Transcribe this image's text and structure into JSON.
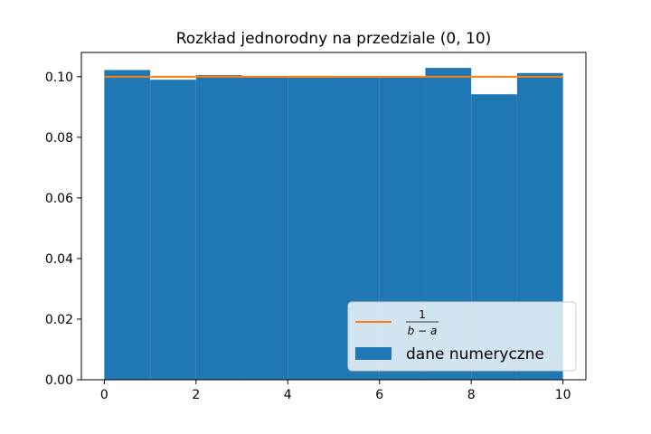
{
  "chart_data": {
    "type": "bar",
    "title": "Rozkład jednorodny na przedziale (0, 10)",
    "xlabel": "",
    "ylabel": "",
    "xlim": [
      -0.5,
      10.5
    ],
    "ylim": [
      0,
      0.108
    ],
    "x_ticks": [
      0,
      2,
      4,
      6,
      8,
      10
    ],
    "x_tick_labels": [
      "0",
      "2",
      "4",
      "6",
      "8",
      "10"
    ],
    "y_ticks": [
      0.0,
      0.02,
      0.04,
      0.06,
      0.08,
      0.1
    ],
    "y_tick_labels": [
      "0.00",
      "0.02",
      "0.04",
      "0.06",
      "0.08",
      "0.10"
    ],
    "grid": false,
    "legend_position": "lower-right",
    "histogram": {
      "name": "dane numeryczne",
      "color": "#1f77b4",
      "bin_edges": [
        0,
        1,
        2,
        3,
        4,
        5,
        6,
        7,
        8,
        9,
        10
      ],
      "values": [
        0.1022,
        0.099,
        0.1005,
        0.0998,
        0.0997,
        0.0999,
        0.0998,
        0.1029,
        0.0942,
        0.1012
      ]
    },
    "line": {
      "label_numerator": "1",
      "label_denominator": "b − a",
      "color": "#ff7f0e",
      "x": [
        0,
        10
      ],
      "y": [
        0.1,
        0.1
      ]
    }
  }
}
